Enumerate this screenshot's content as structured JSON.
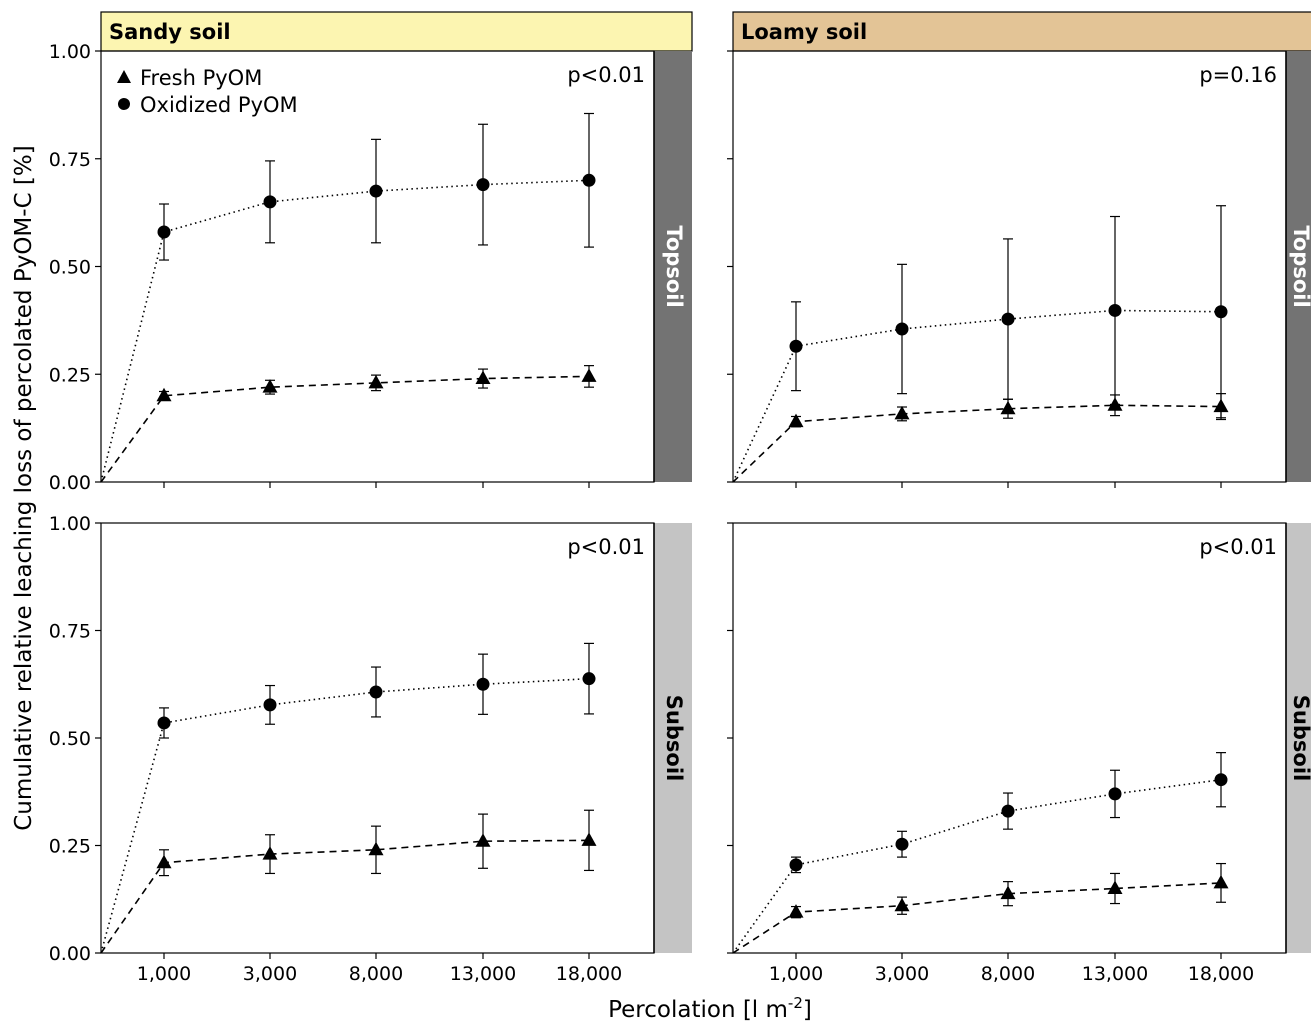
{
  "figure": {
    "ylabel": "Cumulative relative leaching loss of percolated PyOM-C [%]",
    "xlabel_main": "Percolation [l m",
    "xlabel_sup": "-2",
    "xlabel_end": "]",
    "legend": [
      "Fresh PyOM",
      "Oxidized PyOM"
    ],
    "colors": {
      "sandy_header": "#fcf5b1",
      "loamy_header": "#e3c496",
      "topsoil_strip": "#737373",
      "subsoil_strip": "#c4c4c4"
    }
  },
  "chart_data": [
    {
      "type": "scatter",
      "panel": "sandy-topsoil",
      "column_label": "Sandy soil",
      "row_label": "Topsoil",
      "p_value": "p<0.01",
      "x": [
        0,
        1000,
        3000,
        8000,
        13000,
        18000
      ],
      "x_ticks": [
        "1,000",
        "3,000",
        "8,000",
        "13,000",
        "18,000"
      ],
      "ylim": [
        0,
        1
      ],
      "y_ticks": [
        "0.00",
        "0.25",
        "0.50",
        "0.75",
        "1.00"
      ],
      "series": [
        {
          "name": "Fresh PyOM",
          "marker": "triangle",
          "linestyle": "dashed",
          "values": [
            0,
            0.2,
            0.22,
            0.23,
            0.24,
            0.245
          ],
          "errors": [
            0,
            0.01,
            0.016,
            0.018,
            0.022,
            0.025
          ]
        },
        {
          "name": "Oxidized PyOM",
          "marker": "circle",
          "linestyle": "dotted",
          "values": [
            0,
            0.58,
            0.65,
            0.675,
            0.69,
            0.7
          ],
          "errors": [
            0,
            0.065,
            0.095,
            0.12,
            0.14,
            0.155
          ]
        }
      ]
    },
    {
      "type": "scatter",
      "panel": "loamy-topsoil",
      "column_label": "Loamy soil",
      "row_label": "Topsoil",
      "p_value": "p=0.16",
      "x": [
        0,
        1000,
        3000,
        8000,
        13000,
        18000
      ],
      "x_ticks": [
        "1,000",
        "3,000",
        "8,000",
        "13,000",
        "18,000"
      ],
      "ylim": [
        0,
        1
      ],
      "series": [
        {
          "name": "Fresh PyOM",
          "marker": "triangle",
          "linestyle": "dashed",
          "values": [
            0,
            0.14,
            0.158,
            0.17,
            0.178,
            0.175
          ],
          "errors": [
            0,
            0.012,
            0.016,
            0.022,
            0.024,
            0.03
          ]
        },
        {
          "name": "Oxidized PyOM",
          "marker": "circle",
          "linestyle": "dotted",
          "values": [
            0,
            0.315,
            0.355,
            0.378,
            0.398,
            0.395
          ],
          "errors": [
            0,
            0.103,
            0.15,
            0.186,
            0.218,
            0.246
          ]
        }
      ]
    },
    {
      "type": "scatter",
      "panel": "sandy-subsoil",
      "column_label": "Sandy soil",
      "row_label": "Subsoil",
      "p_value": "p<0.01",
      "x": [
        0,
        1000,
        3000,
        8000,
        13000,
        18000
      ],
      "x_ticks": [
        "1,000",
        "3,000",
        "8,000",
        "13,000",
        "18,000"
      ],
      "ylim": [
        0,
        1
      ],
      "y_ticks": [
        "0.00",
        "0.25",
        "0.50",
        "0.75",
        "1.00"
      ],
      "series": [
        {
          "name": "Fresh PyOM",
          "marker": "triangle",
          "linestyle": "dashed",
          "values": [
            0,
            0.21,
            0.23,
            0.24,
            0.26,
            0.262
          ],
          "errors": [
            0,
            0.03,
            0.045,
            0.055,
            0.063,
            0.07
          ]
        },
        {
          "name": "Oxidized PyOM",
          "marker": "circle",
          "linestyle": "dotted",
          "values": [
            0,
            0.535,
            0.577,
            0.607,
            0.625,
            0.638
          ],
          "errors": [
            0,
            0.035,
            0.045,
            0.058,
            0.07,
            0.082
          ]
        }
      ]
    },
    {
      "type": "scatter",
      "panel": "loamy-subsoil",
      "column_label": "Loamy soil",
      "row_label": "Subsoil",
      "p_value": "p<0.01",
      "x": [
        0,
        1000,
        3000,
        8000,
        13000,
        18000
      ],
      "x_ticks": [
        "1,000",
        "3,000",
        "8,000",
        "13,000",
        "18,000"
      ],
      "ylim": [
        0,
        1
      ],
      "series": [
        {
          "name": "Fresh PyOM",
          "marker": "triangle",
          "linestyle": "dashed",
          "values": [
            0,
            0.095,
            0.11,
            0.138,
            0.15,
            0.163
          ],
          "errors": [
            0,
            0.013,
            0.02,
            0.028,
            0.035,
            0.045
          ]
        },
        {
          "name": "Oxidized PyOM",
          "marker": "circle",
          "linestyle": "dotted",
          "values": [
            0,
            0.205,
            0.253,
            0.33,
            0.37,
            0.403
          ],
          "errors": [
            0,
            0.018,
            0.03,
            0.042,
            0.055,
            0.063
          ]
        }
      ]
    }
  ]
}
